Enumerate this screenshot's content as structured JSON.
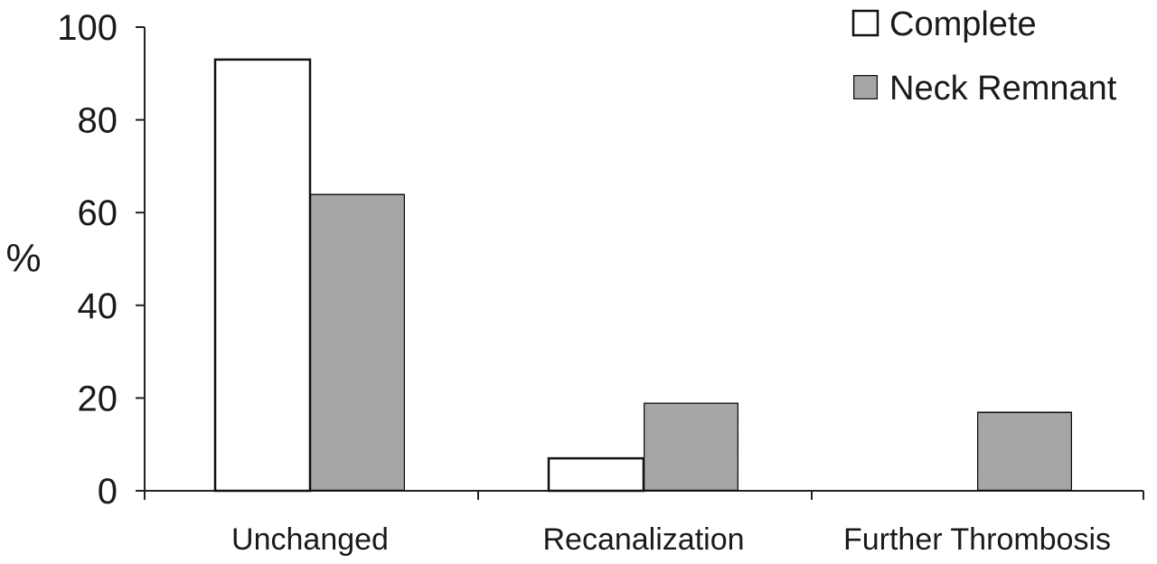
{
  "chart_data": {
    "type": "bar",
    "title": "",
    "xlabel": "",
    "ylabel": "%",
    "ylim": [
      0,
      100
    ],
    "yticks": [
      0,
      20,
      40,
      60,
      80,
      100
    ],
    "grid": false,
    "legend_position": "top-right",
    "categories": [
      "Unchanged",
      "Recanalization",
      "Further Thrombosis"
    ],
    "series": [
      {
        "name": "Complete",
        "color": "#ffffff",
        "values": [
          93,
          7,
          0
        ]
      },
      {
        "name": "Neck Remnant",
        "color": "#a9a9a9",
        "values": [
          64,
          19,
          17
        ]
      }
    ]
  }
}
